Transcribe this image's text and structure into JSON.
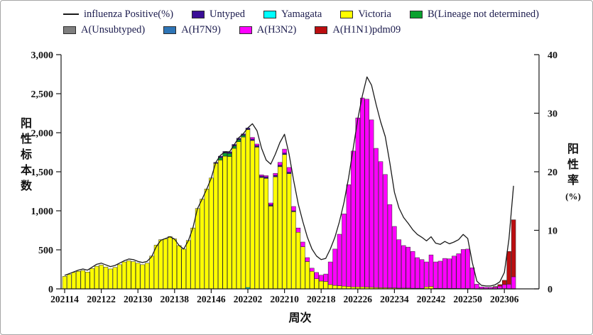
{
  "figure": {
    "background": "#ffffff",
    "border_color": "#a6a6a6",
    "text_color": "#1b1b4d"
  },
  "legend": {
    "rows": [
      [
        {
          "label": "influenza Positive(%)",
          "swatch": "line",
          "color": "#1a1a1a"
        },
        {
          "label": "Untyped",
          "swatch": "box",
          "color": "#3a0e96"
        },
        {
          "label": "Yamagata",
          "swatch": "box",
          "color": "#00ffff"
        },
        {
          "label": "Victoria",
          "swatch": "box",
          "color": "#ffff00"
        },
        {
          "label": "B(Lineage not determined)",
          "swatch": "box",
          "color": "#0aa12f"
        }
      ],
      [
        {
          "label": "A(Unsubtyped)",
          "swatch": "box",
          "color": "#7f7f7f"
        },
        {
          "label": "A(H7N9)",
          "swatch": "box",
          "color": "#2e75b6"
        },
        {
          "label": "A(H3N2)",
          "swatch": "box",
          "color": "#ff00ff"
        },
        {
          "label": "A(H1N1)pdm09",
          "swatch": "box",
          "color": "#bb0e10"
        }
      ]
    ]
  },
  "chart_data": {
    "type": "bar",
    "subtype": "stacked-bars-with-rate-line",
    "title": "",
    "xlabel": "周次",
    "x_axis": {
      "tick_labels": [
        "202114",
        "202122",
        "202130",
        "202138",
        "202146",
        "202202",
        "202210",
        "202218",
        "202226",
        "202234",
        "202242",
        "202250",
        "202306"
      ],
      "first_week": "202114",
      "last_week": "202308",
      "weeks_total": 99,
      "interval": "weekly"
    },
    "y_left": {
      "title_chars": [
        "阳",
        "性",
        "标",
        "本",
        "数"
      ],
      "tick_labels": [
        "0",
        "500",
        "1,000",
        "1,500",
        "2,000",
        "2,500",
        "3,000"
      ],
      "range": [
        0,
        3000
      ]
    },
    "y_right": {
      "title_chars": [
        "阳",
        "性",
        "率"
      ],
      "title_unit": "(%)",
      "tick_labels": [
        "0",
        "10",
        "20",
        "30",
        "40"
      ],
      "range": [
        0,
        40
      ]
    },
    "stack_order": [
      "a_unsubtyped",
      "yamagata",
      "victoria",
      "b_lineage",
      "untyped",
      "a_h7n9",
      "a_h3n2",
      "a_h1n1pdm09"
    ],
    "series": [
      {
        "key": "untyped",
        "name": "Untyped",
        "color": "#3a0e96",
        "values": {
          "33": 12,
          "34": 20,
          "35": 20,
          "36": 20,
          "37": 20,
          "38": 20,
          "39": 20,
          "40": 20,
          "41": 20,
          "42": 20,
          "43": 20,
          "44": 20,
          "45": 20,
          "46": 20,
          "47": 20,
          "48": 20,
          "49": 20,
          "50": 12
        }
      },
      {
        "key": "yamagata",
        "name": "Yamagata",
        "color": "#00ffff",
        "values": {
          "40": 18
        }
      },
      {
        "key": "victoria",
        "name": "Victoria",
        "color": "#ffff00",
        "values": [
          160,
          185,
          210,
          225,
          235,
          215,
          260,
          290,
          305,
          280,
          255,
          275,
          310,
          345,
          360,
          350,
          330,
          310,
          330,
          420,
          560,
          630,
          640,
          670,
          640,
          555,
          510,
          620,
          780,
          1030,
          1150,
          1280,
          1420,
          1608,
          1650,
          1700,
          1695,
          1800,
          1885,
          1945,
          2022,
          1900,
          1815,
          1425,
          1415,
          1060,
          1435,
          1565,
          1720,
          1475,
          988,
          725,
          540,
          350,
          225,
          130,
          100,
          95,
          55,
          45,
          40,
          35,
          30,
          25,
          25,
          25,
          23,
          20,
          18,
          15,
          15,
          12,
          12,
          10,
          10,
          10,
          8,
          8,
          7,
          25,
          30,
          7,
          7,
          6,
          6,
          6,
          5,
          5,
          5,
          4,
          2,
          1,
          1,
          1,
          1,
          2,
          3,
          2,
          2
        ]
      },
      {
        "key": "b_lineage",
        "name": "B(Lineage not determined)",
        "color": "#0aa12f",
        "values": {
          "34": 30,
          "35": 40,
          "36": 40,
          "37": 30,
          "38": 25,
          "39": 20
        }
      },
      {
        "key": "a_unsubtyped",
        "name": "A(Unsubtyped)",
        "color": "#7f7f7f",
        "values": 0
      },
      {
        "key": "a_h7n9",
        "name": "A(H7N9)",
        "color": "#2e75b6",
        "values": 0
      },
      {
        "key": "a_h3n2",
        "name": "A(H3N2)",
        "color": "#ff00ff",
        "values": [
          0,
          0,
          0,
          0,
          0,
          0,
          0,
          0,
          0,
          0,
          0,
          0,
          0,
          0,
          0,
          0,
          0,
          0,
          0,
          0,
          0,
          0,
          0,
          0,
          0,
          0,
          0,
          0,
          0,
          0,
          0,
          0,
          0,
          0,
          0,
          0,
          0,
          0,
          0,
          0,
          0,
          20,
          20,
          15,
          15,
          20,
          25,
          35,
          50,
          60,
          55,
          55,
          60,
          50,
          40,
          80,
          75,
          95,
          290,
          465,
          660,
          925,
          1305,
          1740,
          2165,
          2420,
          2407,
          2145,
          1782,
          1615,
          1450,
          1068,
          788,
          620,
          545,
          525,
          472,
          392,
          368,
          320,
          405,
          338,
          348,
          384,
          379,
          414,
          445,
          500,
          505,
          266,
          58,
          24,
          19,
          19,
          21,
          33,
          52,
          58,
          153
        ]
      },
      {
        "key": "a_h1n1pdm09",
        "name": "A(H1N1)pdm09",
        "color": "#bb0e10",
        "values": {
          "94": 8,
          "95": 20,
          "96": 55,
          "97": 420,
          "98": 730
        }
      }
    ],
    "line": {
      "name": "influenza Positive(%)",
      "color": "#1a1a1a",
      "axis": "right",
      "values": [
        2.3,
        2.6,
        2.9,
        3.2,
        3.4,
        3.2,
        3.7,
        4.2,
        4.4,
        4.1,
        3.8,
        4.0,
        4.4,
        4.8,
        5.1,
        5.0,
        4.7,
        4.5,
        4.7,
        5.5,
        7.2,
        8.3,
        8.6,
        8.9,
        8.5,
        7.4,
        6.8,
        8.2,
        10.4,
        13.7,
        15.3,
        17.0,
        18.9,
        21.6,
        22.8,
        23.4,
        23.4,
        24.6,
        25.8,
        26.5,
        27.5,
        28.2,
        27.0,
        24.0,
        22.0,
        21.3,
        23.0,
        25.0,
        26.4,
        23.0,
        18.5,
        14.5,
        11.5,
        8.8,
        6.8,
        5.6,
        5.0,
        5.2,
        6.8,
        8.8,
        11.5,
        14.8,
        19.0,
        24.0,
        29.0,
        33.0,
        36.2,
        34.8,
        31.5,
        28.5,
        26.0,
        21.5,
        16.5,
        13.8,
        12.2,
        11.2,
        10.1,
        9.3,
        8.8,
        8.2,
        8.9,
        7.8,
        7.6,
        8.1,
        7.7,
        8.0,
        8.4,
        9.3,
        8.6,
        4.5,
        1.3,
        0.6,
        0.5,
        0.5,
        0.7,
        1.2,
        2.8,
        8.5,
        17.6
      ]
    },
    "layout": {
      "grid": false,
      "legend_position": "top-left",
      "bar_outline": "#262626"
    }
  }
}
